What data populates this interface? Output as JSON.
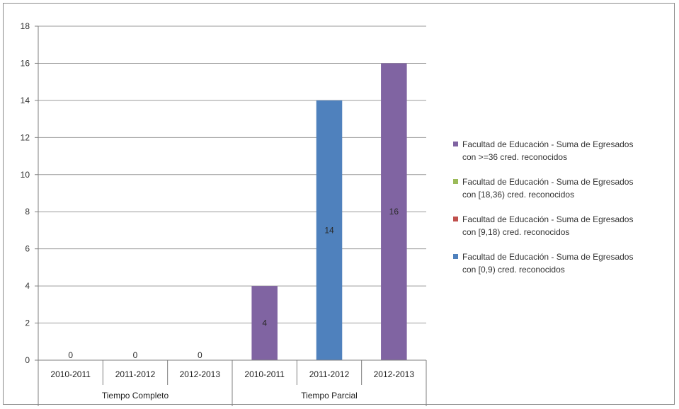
{
  "chart_data": {
    "type": "bar",
    "ylim": [
      0,
      18
    ],
    "y_ticks": [
      0,
      2,
      4,
      6,
      8,
      10,
      12,
      14,
      16,
      18
    ],
    "grid": true,
    "legend_position": "right",
    "groups": [
      {
        "label": "Tiempo Completo",
        "categories": [
          "2010-2011",
          "2011-2012",
          "2012-2013"
        ]
      },
      {
        "label": "Tiempo Parcial",
        "categories": [
          "2010-2011",
          "2011-2012",
          "2012-2013"
        ]
      }
    ],
    "bars": [
      {
        "group": 0,
        "index": 0,
        "value": 0,
        "color": "#8064a2"
      },
      {
        "group": 0,
        "index": 1,
        "value": 0,
        "color": "#8064a2"
      },
      {
        "group": 0,
        "index": 2,
        "value": 0,
        "color": "#8064a2"
      },
      {
        "group": 1,
        "index": 0,
        "value": 4,
        "color": "#8064a2"
      },
      {
        "group": 1,
        "index": 1,
        "value": 14,
        "color": "#4f81bd"
      },
      {
        "group": 1,
        "index": 2,
        "value": 16,
        "color": "#8064a2"
      }
    ],
    "series": [
      {
        "name": "Facultad de Educación - Suma de Egresados con >=36 cred. reconocidos",
        "color": "#8064a2"
      },
      {
        "name": "Facultad de Educación - Suma de Egresados con [18,36) cred. reconocidos",
        "color": "#9bbb59"
      },
      {
        "name": "Facultad de Educación - Suma de Egresados con [9,18) cred. reconocidos",
        "color": "#c0504d"
      },
      {
        "name": "Facultad de Educación - Suma de Egresados con [0,9) cred. reconocidos",
        "color": "#4f81bd"
      }
    ]
  },
  "legend": {
    "items": [
      {
        "line1": "Facultad de Educación - Suma de Egresados",
        "line2": "con >=36 cred. reconocidos",
        "color": "#8064a2"
      },
      {
        "line1": "Facultad de Educación - Suma de Egresados",
        "line2": "con [18,36) cred. reconocidos",
        "color": "#9bbb59"
      },
      {
        "line1": "Facultad de Educación - Suma de Egresados",
        "line2": "con [9,18) cred. reconocidos",
        "color": "#c0504d"
      },
      {
        "line1": "Facultad de Educación - Suma de Egresados",
        "line2": "con [0,9) cred. reconocidos",
        "color": "#4f81bd"
      }
    ]
  }
}
